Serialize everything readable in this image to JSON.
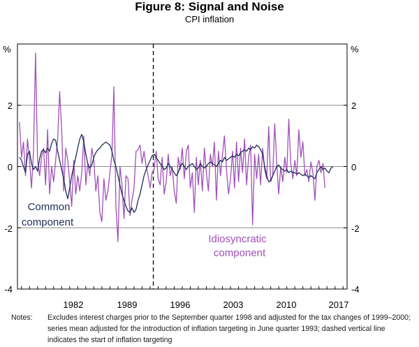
{
  "chart_data": {
    "type": "line",
    "title": "Figure 8: Signal and Noise",
    "subtitle": "CPI inflation",
    "ylabel_left": "%",
    "ylabel_right": "%",
    "ylim": [
      -4,
      4
    ],
    "yticks_left": [
      "-4",
      "-2",
      "0",
      "2"
    ],
    "yticks_right": [
      "-4",
      "-2",
      "0",
      "2"
    ],
    "xlim": [
      1976.5,
      2017.5
    ],
    "x_tick_labels": [
      "1982",
      "1989",
      "1996",
      "2003",
      "2010",
      "2017"
    ],
    "x_tick_values": [
      1982,
      1989,
      1996,
      2003,
      2010,
      2017
    ],
    "grid": "horizontal",
    "vline": {
      "x": 1993.4,
      "style": "dashed",
      "meaning": "start of inflation targeting"
    },
    "annotations": {
      "common_line1": "Common",
      "common_line2": "component",
      "idio_line1": "Idiosyncratic",
      "idio_line2": "component"
    },
    "series": [
      {
        "name": "Common component",
        "color": "#1f2d5a",
        "x_start": 1976.75,
        "x_step": 0.25,
        "values": [
          0.3,
          0.2,
          0.0,
          -0.2,
          0.4,
          0.5,
          0.1,
          -0.1,
          0.0,
          -0.15,
          0.25,
          0.5,
          0.55,
          0.45,
          0.6,
          0.5,
          0.75,
          0.9,
          0.85,
          0.5,
          0.2,
          -0.1,
          -0.4,
          -0.8,
          -1.05,
          -0.7,
          -0.3,
          0.0,
          0.3,
          0.6,
          0.9,
          1.05,
          0.8,
          0.4,
          0.1,
          -0.05,
          0.05,
          0.3,
          0.45,
          0.55,
          0.6,
          0.7,
          0.75,
          0.8,
          0.75,
          0.7,
          0.5,
          0.2,
          0.0,
          -0.3,
          -0.6,
          -0.9,
          -1.1,
          -1.3,
          -1.45,
          -1.5,
          -1.35,
          -1.5,
          -1.4,
          -1.1,
          -0.9,
          -0.6,
          -0.3,
          -0.1,
          0.05,
          0.2,
          0.35,
          0.4,
          0.3,
          0.2,
          0.1,
          0.0,
          -0.1,
          -0.05,
          0.1,
          0.0,
          -0.1,
          -0.2,
          -0.3,
          -0.2,
          0.0,
          0.1,
          0.0,
          -0.1,
          0.0,
          0.05,
          0.1,
          0.0,
          -0.1,
          -0.05,
          0.1,
          0.0,
          -0.05,
          0.0,
          0.1,
          0.15,
          0.1,
          0.05,
          0.0,
          0.1,
          0.2,
          0.15,
          0.3,
          0.2,
          0.25,
          0.3,
          0.35,
          0.3,
          0.4,
          0.35,
          0.45,
          0.5,
          0.55,
          0.5,
          0.6,
          0.55,
          0.65,
          0.6,
          0.7,
          0.65,
          0.55,
          0.4,
          0.0,
          -0.3,
          -0.5,
          -0.45,
          -0.3,
          -0.15,
          0.0,
          0.05,
          -0.05,
          -0.1,
          -0.15,
          -0.1,
          -0.2,
          -0.15,
          -0.2,
          -0.2,
          -0.25,
          -0.2,
          -0.25,
          -0.3,
          -0.25,
          -0.3,
          -0.35,
          -0.3,
          -0.35,
          -0.4,
          -0.2,
          -0.1,
          0.0,
          -0.1,
          -0.05,
          -0.15,
          -0.2,
          -0.05,
          0.0
        ]
      },
      {
        "name": "Idiosyncratic component",
        "color": "#a050b8",
        "x_start": 1976.75,
        "x_step": 0.25,
        "values": [
          1.45,
          0.3,
          0.8,
          -0.3,
          0.9,
          0.2,
          -0.7,
          0.5,
          3.7,
          0.2,
          -0.3,
          0.3,
          0.6,
          -0.6,
          1.2,
          -0.9,
          0.0,
          -0.5,
          0.2,
          0.9,
          2.45,
          1.2,
          -0.8,
          0.6,
          0.2,
          -0.5,
          -1.3,
          0.2,
          -0.9,
          -0.3,
          -0.8,
          -0.2,
          1.0,
          -0.6,
          0.1,
          -0.3,
          0.6,
          0.2,
          -0.8,
          -0.3,
          -1.5,
          -1.8,
          -0.4,
          -1.1,
          -0.8,
          -0.2,
          0.4,
          2.6,
          -1.3,
          -2.45,
          0.0,
          -0.6,
          -1.7,
          -0.3,
          -0.4,
          -1.6,
          -1.1,
          -0.7,
          0.5,
          0.55,
          0.7,
          0.1,
          0.5,
          0.0,
          -0.3,
          -0.7,
          -0.2,
          -0.1,
          0.5,
          -0.4,
          -0.6,
          0.3,
          -0.9,
          -0.5,
          0.4,
          -0.3,
          0.0,
          -0.8,
          -1.2,
          0.3,
          -0.1,
          0.6,
          -0.4,
          0.5,
          0.7,
          -0.7,
          -0.2,
          -1.5,
          0.3,
          -0.6,
          0.2,
          -0.8,
          0.6,
          -0.2,
          -0.8,
          0.4,
          0.0,
          0.8,
          -1.1,
          0.5,
          -0.3,
          0.4,
          1.0,
          -0.1,
          -0.9,
          -0.4,
          0.5,
          -0.7,
          0.8,
          -0.5,
          0.6,
          -0.2,
          0.9,
          -0.6,
          0.3,
          0.7,
          -1.9,
          0.4,
          -0.4,
          0.4,
          -0.6,
          0.6,
          -0.1,
          -0.4,
          1.3,
          -0.5,
          -0.3,
          1.4,
          0.1,
          -0.9,
          0.0,
          -0.5,
          0.3,
          -0.2,
          1.55,
          0.1,
          -0.4,
          0.2,
          -0.3,
          1.2,
          0.3,
          0.8,
          -0.3,
          -0.1,
          -0.5,
          0.15,
          -0.2,
          -1.1,
          0.0,
          0.2,
          -0.2,
          0.1,
          -0.7
        ]
      }
    ]
  },
  "notes": {
    "label": "Notes:",
    "text": "Excludes interest charges prior to the September quarter 1998 and adjusted for the tax changes of 1999–2000; series mean adjusted for the introduction of inflation targeting in June quarter 1993; dashed vertical line indicates the start of inflation targeting"
  }
}
